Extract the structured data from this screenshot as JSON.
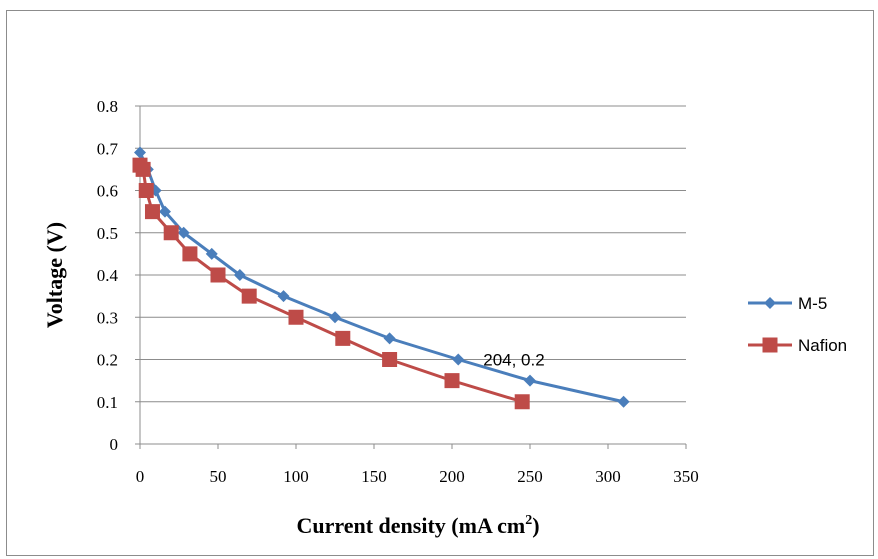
{
  "chart_data": {
    "type": "line",
    "title": "",
    "xlabel": "Current density (mA cm",
    "xlabel_sup": "2",
    "xlabel_end": ")",
    "ylabel": "Voltage (V)",
    "xlim": [
      0,
      350
    ],
    "ylim": [
      0,
      0.8
    ],
    "xticks": [
      0,
      50,
      100,
      150,
      200,
      250,
      300,
      350
    ],
    "yticks": [
      0,
      0.1,
      0.2,
      0.3,
      0.4,
      0.5,
      0.6,
      0.7,
      0.8
    ],
    "xtick_labels": [
      "0",
      "50",
      "100",
      "150",
      "200",
      "250",
      "300",
      "350"
    ],
    "ytick_labels": [
      "0",
      "0.1",
      "0.2",
      "0.3",
      "0.4",
      "0.5",
      "0.6",
      "0.7",
      "0.8"
    ],
    "grid": "horizontal",
    "legend_position": "right",
    "series": [
      {
        "name": "M-5",
        "color": "#4a7ebb",
        "marker": "diamond",
        "x": [
          0,
          5,
          10,
          16,
          28,
          46,
          64,
          92,
          125,
          160,
          204,
          250,
          310
        ],
        "y": [
          0.69,
          0.65,
          0.6,
          0.55,
          0.5,
          0.45,
          0.4,
          0.35,
          0.3,
          0.25,
          0.2,
          0.15,
          0.1
        ]
      },
      {
        "name": "Nafion",
        "color": "#be4b48",
        "marker": "square",
        "x": [
          0,
          2,
          4,
          8,
          20,
          32,
          50,
          70,
          100,
          130,
          160,
          200,
          245
        ],
        "y": [
          0.66,
          0.65,
          0.6,
          0.55,
          0.5,
          0.45,
          0.4,
          0.35,
          0.3,
          0.25,
          0.2,
          0.15,
          0.1
        ]
      }
    ],
    "annotations": [
      {
        "text": "204, 0.2",
        "x": 204,
        "y": 0.2
      }
    ]
  }
}
